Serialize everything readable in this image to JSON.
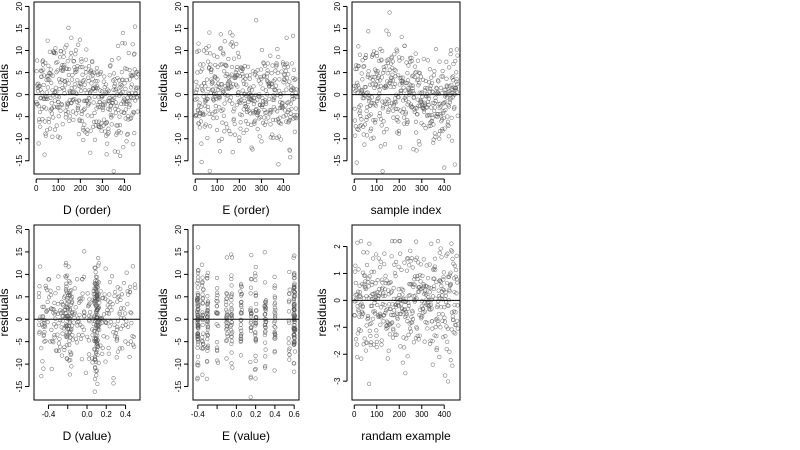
{
  "chart_data": [
    {
      "type": "scatter",
      "xlabel": "D (order)",
      "ylabel": "residuals",
      "xlim": [
        -10,
        470
      ],
      "ylim": [
        -18,
        21
      ],
      "xticks": [
        0,
        100,
        200,
        300,
        400
      ],
      "yticks": [
        -15,
        -10,
        -5,
        0,
        5,
        10,
        15,
        20
      ],
      "hline": 0,
      "point_color": "#555555",
      "n": 460,
      "trend": "order",
      "series": [
        {
          "points_spec": "sample indices 1..460 vs residuals (sd ~5.6)"
        }
      ]
    },
    {
      "type": "scatter",
      "xlabel": "E (order)",
      "ylabel": "residuals",
      "xlim": [
        -10,
        470
      ],
      "ylim": [
        -18,
        21
      ],
      "xticks": [
        0,
        100,
        200,
        300,
        400
      ],
      "yticks": [
        -15,
        -10,
        -5,
        0,
        5,
        10,
        15,
        20
      ],
      "hline": 0,
      "point_color": "#555555",
      "n": 460,
      "trend": "order",
      "series": [
        {
          "points_spec": "E ordered index vs residuals"
        }
      ]
    },
    {
      "type": "scatter",
      "xlabel": "sample index",
      "ylabel": "residuals",
      "xlim": [
        -10,
        470
      ],
      "ylim": [
        -18,
        21
      ],
      "xticks": [
        0,
        100,
        200,
        300,
        400
      ],
      "yticks": [
        -15,
        -10,
        -5,
        0,
        5,
        10,
        15,
        20
      ],
      "hline": 0,
      "point_color": "#555555",
      "n": 460,
      "trend": "index",
      "series": [
        {
          "points_spec": "sample index vs residuals"
        }
      ]
    },
    {
      "type": "scatter",
      "xlabel": "D (value)",
      "ylabel": "residuals",
      "xlim": [
        -0.55,
        0.55
      ],
      "ylim": [
        -18,
        21
      ],
      "xticks": [
        -0.4,
        -0.2,
        0.0,
        0.2,
        0.4
      ],
      "xtick_labels": [
        "-0.4",
        "",
        "0.0",
        "0.2",
        "0.4"
      ],
      "yticks": [
        -15,
        -10,
        -5,
        0,
        5,
        10,
        15,
        20
      ],
      "hline": 0,
      "point_color": "#555555",
      "n": 460,
      "trend": "dvalue",
      "series": [
        {
          "points_spec": "D value (-0.5..0.5, clustered near 0.1) vs residuals"
        }
      ]
    },
    {
      "type": "scatter",
      "xlabel": "E (value)",
      "ylabel": "residuals",
      "xlim": [
        -0.45,
        0.65
      ],
      "ylim": [
        -18,
        21
      ],
      "xticks": [
        -0.4,
        -0.2,
        0.0,
        0.2,
        0.4,
        0.6
      ],
      "xtick_labels": [
        "-0.4",
        "",
        "0.0",
        "0.2",
        "0.4",
        "0.6"
      ],
      "yticks": [
        -15,
        -10,
        -5,
        0,
        5,
        10,
        15,
        20
      ],
      "hline": 0,
      "point_color": "#555555",
      "n": 460,
      "trend": "evalue",
      "series": [
        {
          "points_spec": "E value (discrete columns, dense at -0.4 and 0.6) vs residuals"
        }
      ]
    },
    {
      "type": "scatter",
      "xlabel": "randam example",
      "ylabel": "residuals",
      "xlim": [
        -10,
        470
      ],
      "ylim": [
        -3.7,
        2.8
      ],
      "xticks": [
        0,
        100,
        200,
        300,
        400
      ],
      "yticks": [
        -3,
        -2,
        -1,
        0,
        1,
        2
      ],
      "hline": 0,
      "point_color": "#555555",
      "n": 460,
      "trend": "random",
      "series": [
        {
          "points_spec": "standard normal random sample vs index"
        }
      ]
    }
  ]
}
